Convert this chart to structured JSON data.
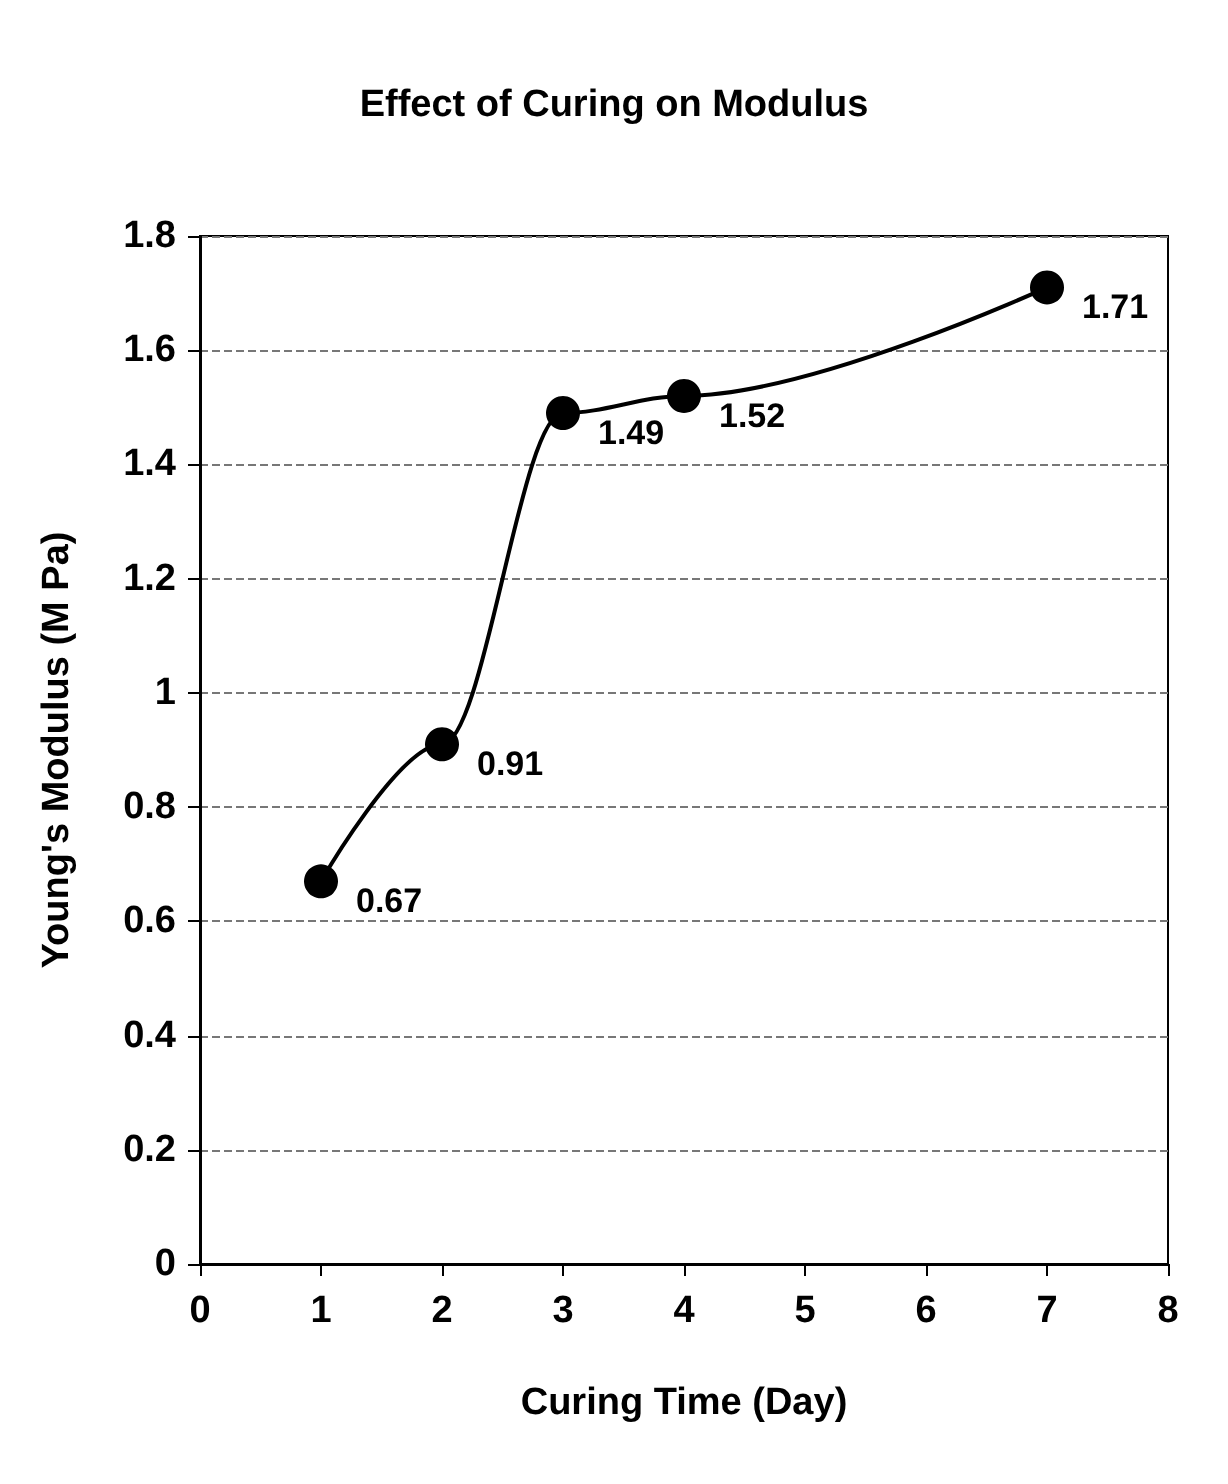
{
  "chart_data": {
    "type": "line",
    "title": "Effect of Curing on Modulus",
    "xlabel": "Curing Time (Day)",
    "ylabel": "Young's Modulus (M Pa)",
    "x": [
      1,
      2,
      3,
      4,
      7
    ],
    "series": [
      {
        "color": "#000000",
        "values": [
          0.67,
          0.91,
          1.49,
          1.52,
          1.71
        ]
      }
    ],
    "xlim": [
      0,
      8
    ],
    "xticks": [
      0,
      1,
      2,
      3,
      4,
      5,
      6,
      7,
      8
    ],
    "ylim": [
      0,
      1.8
    ],
    "yticks": [
      0,
      0.2,
      0.4,
      0.6,
      0.8,
      1,
      1.2,
      1.4,
      1.6,
      1.8
    ],
    "grid": "y",
    "marker": "circle",
    "line_style": "solid",
    "data_labels": true
  }
}
